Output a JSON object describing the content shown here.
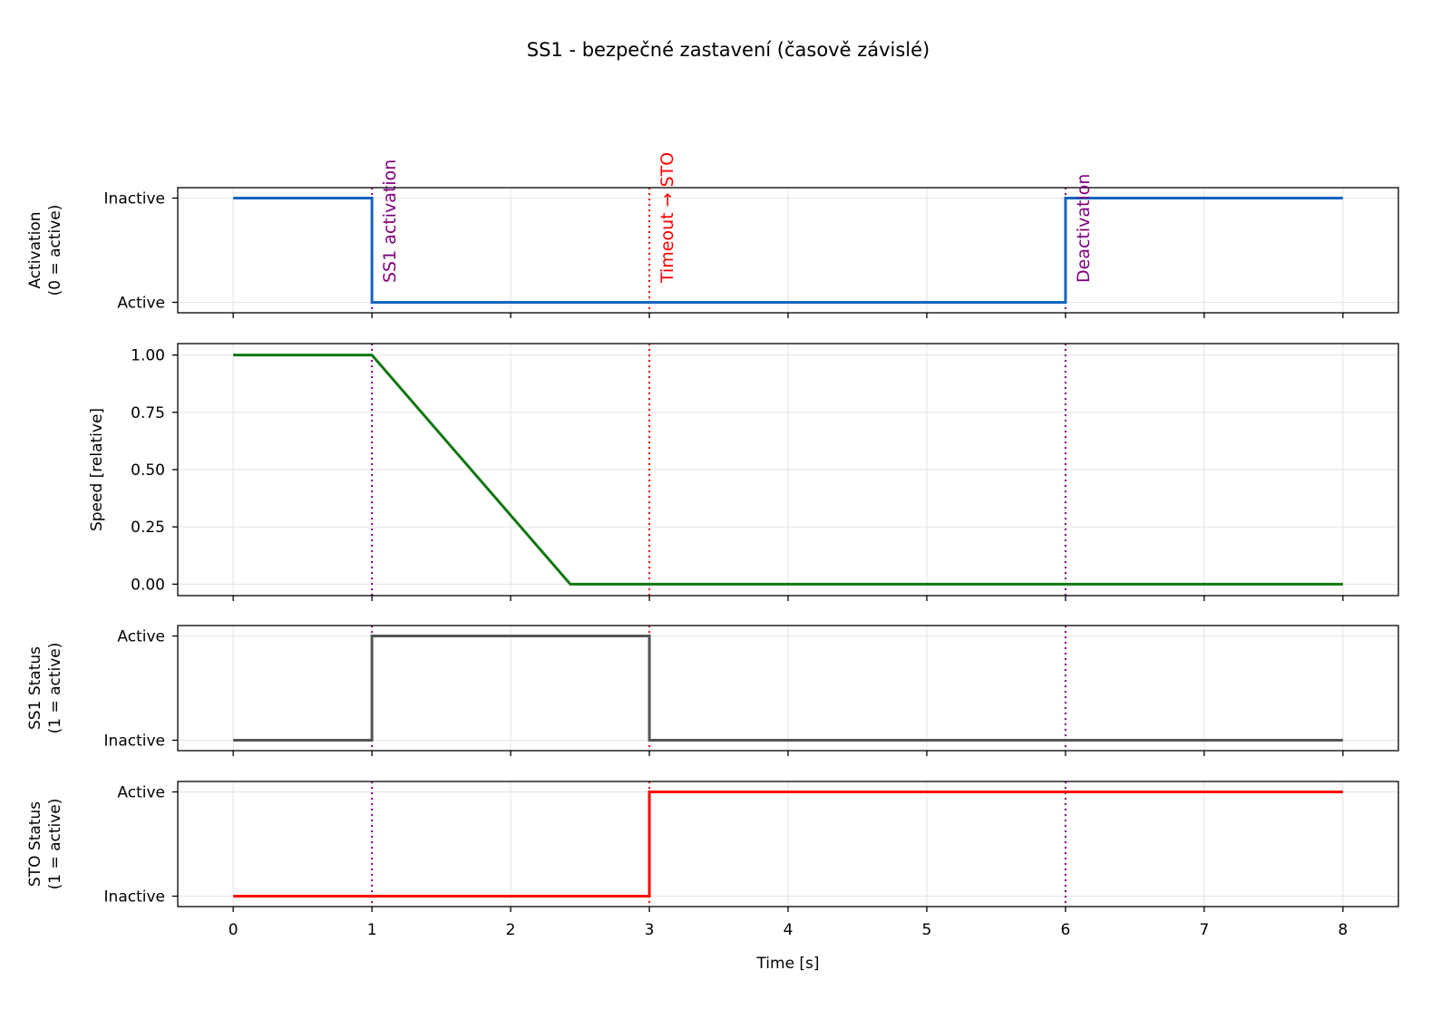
{
  "chart_data": {
    "type": "line",
    "title": "SS1 - bezpečné zastavení (časově závislé)",
    "xlabel": "Time [s]",
    "xlim": [
      -0.4,
      8.4
    ],
    "xticks": [
      0,
      1,
      2,
      3,
      4,
      5,
      6,
      7,
      8
    ],
    "grid": true,
    "events": [
      {
        "t": 1,
        "label": "SS1 activation",
        "color": "#800080"
      },
      {
        "t": 3,
        "label": "Timeout → STO",
        "color": "#ff0000"
      },
      {
        "t": 6,
        "label": "Deactivation",
        "color": "#800080"
      }
    ],
    "panels": [
      {
        "ylabel": [
          "Activation",
          "(0 = active)"
        ],
        "ylim": [
          -0.1,
          1.1
        ],
        "yticks": [
          {
            "v": 0,
            "label": "Active"
          },
          {
            "v": 1,
            "label": "Inactive"
          }
        ],
        "color": "#1565c0",
        "x": [
          0,
          1,
          1,
          6,
          6,
          8
        ],
        "y": [
          1,
          1,
          0,
          0,
          1,
          1
        ]
      },
      {
        "ylabel": [
          "Speed [relative]"
        ],
        "ylim": [
          -0.05,
          1.05
        ],
        "yticks": [
          {
            "v": 0,
            "label": "0.00"
          },
          {
            "v": 0.25,
            "label": "0.25"
          },
          {
            "v": 0.5,
            "label": "0.50"
          },
          {
            "v": 0.75,
            "label": "0.75"
          },
          {
            "v": 1,
            "label": "1.00"
          }
        ],
        "color": "#117711",
        "x": [
          0,
          1,
          2.43,
          8
        ],
        "y": [
          1,
          1,
          0,
          0
        ]
      },
      {
        "ylabel": [
          "SS1 Status",
          "(1 = active)"
        ],
        "ylim": [
          -0.1,
          1.1
        ],
        "yticks": [
          {
            "v": 0,
            "label": "Inactive"
          },
          {
            "v": 1,
            "label": "Active"
          }
        ],
        "color": "#555555",
        "x": [
          0,
          1,
          1,
          3,
          3,
          8
        ],
        "y": [
          0,
          0,
          1,
          1,
          0,
          0
        ]
      },
      {
        "ylabel": [
          "STO Status",
          "(1 = active)"
        ],
        "ylim": [
          -0.1,
          1.1
        ],
        "yticks": [
          {
            "v": 0,
            "label": "Inactive"
          },
          {
            "v": 1,
            "label": "Active"
          }
        ],
        "color": "#ff0000",
        "x": [
          0,
          3,
          3,
          8
        ],
        "y": [
          0,
          0,
          1,
          1
        ]
      }
    ]
  }
}
